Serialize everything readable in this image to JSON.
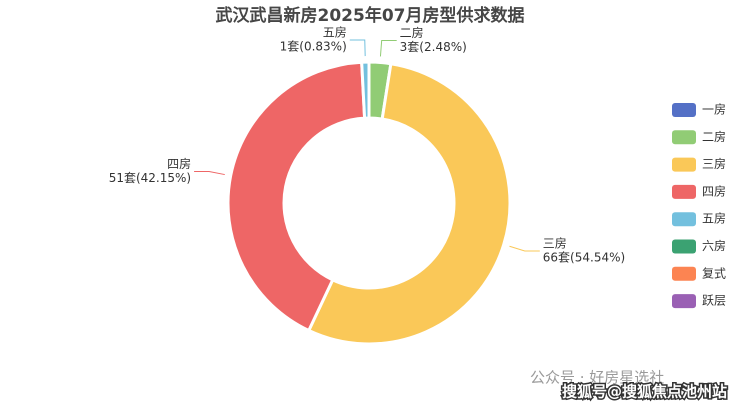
{
  "chart_data": {
    "type": "pie",
    "title": "武汉武昌新房2025年07月房型供求数据",
    "categories": [
      "一房",
      "二房",
      "三房",
      "四房",
      "五房",
      "六房",
      "复式",
      "跃层"
    ],
    "values": [
      0,
      3,
      66,
      51,
      1,
      0,
      0,
      0
    ],
    "value_labels": [
      null,
      "3套(2.48%)",
      "66套(54.54%)",
      "51套(42.15%)",
      "1套(0.83%)",
      null,
      null,
      null
    ],
    "colors": [
      "#5470c6",
      "#91cc75",
      "#fac858",
      "#ee6666",
      "#73c0de",
      "#3ba272",
      "#fc8452",
      "#9a60b4"
    ],
    "legend": "right",
    "watermark": [
      "公众号 · 好房星选社",
      "搜狐号@搜狐焦点池州站"
    ]
  }
}
